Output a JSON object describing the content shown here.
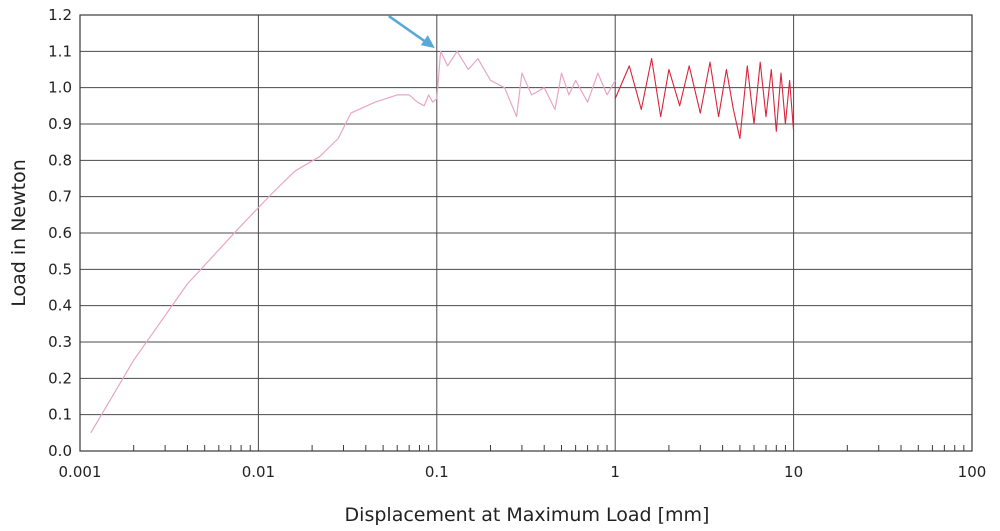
{
  "chart_data": {
    "type": "line",
    "title": "",
    "xlabel": "Displacement at Maximum Load [mm]",
    "ylabel": "Load in Newton",
    "x_scale": "log",
    "xlim": [
      0.001,
      100
    ],
    "ylim": [
      0,
      1.2
    ],
    "grid": true,
    "legend": "none",
    "x_ticks": [
      "0.001",
      "0.01",
      "0.1",
      "1",
      "10",
      "100"
    ],
    "y_ticks": [
      "0.0",
      "0.1",
      "0.2",
      "0.3",
      "0.4",
      "0.5",
      "0.6",
      "0.7",
      "0.8",
      "0.9",
      "1.0",
      "1.1",
      "1.2"
    ],
    "series": [
      {
        "color": "#e7a6c4",
        "x": [
          0.00115,
          0.002,
          0.004,
          0.008,
          0.012,
          0.016,
          0.022,
          0.028,
          0.033,
          0.045,
          0.06,
          0.07,
          0.078,
          0.085,
          0.09,
          0.095,
          0.1,
          0.105,
          0.115,
          0.13,
          0.15,
          0.17,
          0.2,
          0.24,
          0.28,
          0.3,
          0.34,
          0.4,
          0.46,
          0.5,
          0.55,
          0.6,
          0.7,
          0.8,
          0.9,
          1.0
        ],
        "y": [
          0.05,
          0.25,
          0.46,
          0.62,
          0.71,
          0.77,
          0.81,
          0.86,
          0.93,
          0.96,
          0.98,
          0.98,
          0.96,
          0.95,
          0.98,
          0.96,
          0.97,
          1.1,
          1.06,
          1.1,
          1.05,
          1.08,
          1.02,
          1.0,
          0.92,
          1.04,
          0.98,
          1.0,
          0.94,
          1.04,
          0.98,
          1.02,
          0.96,
          1.04,
          0.98,
          1.02
        ]
      },
      {
        "color": "#d9243c",
        "x": [
          1.0,
          1.2,
          1.4,
          1.6,
          1.8,
          2.0,
          2.3,
          2.6,
          3.0,
          3.4,
          3.8,
          4.2,
          4.6,
          5.0,
          5.5,
          6.0,
          6.5,
          7.0,
          7.5,
          8.0,
          8.5,
          9.0,
          9.5,
          10.0
        ],
        "y": [
          0.97,
          1.06,
          0.94,
          1.08,
          0.92,
          1.05,
          0.95,
          1.06,
          0.93,
          1.07,
          0.92,
          1.05,
          0.94,
          0.86,
          1.06,
          0.9,
          1.07,
          0.92,
          1.05,
          0.88,
          1.04,
          0.9,
          1.02,
          0.88
        ]
      }
    ],
    "annotations": [
      {
        "type": "arrow",
        "color": "#5aa8d8",
        "target_x": 0.1,
        "target_y": 1.12
      }
    ]
  }
}
